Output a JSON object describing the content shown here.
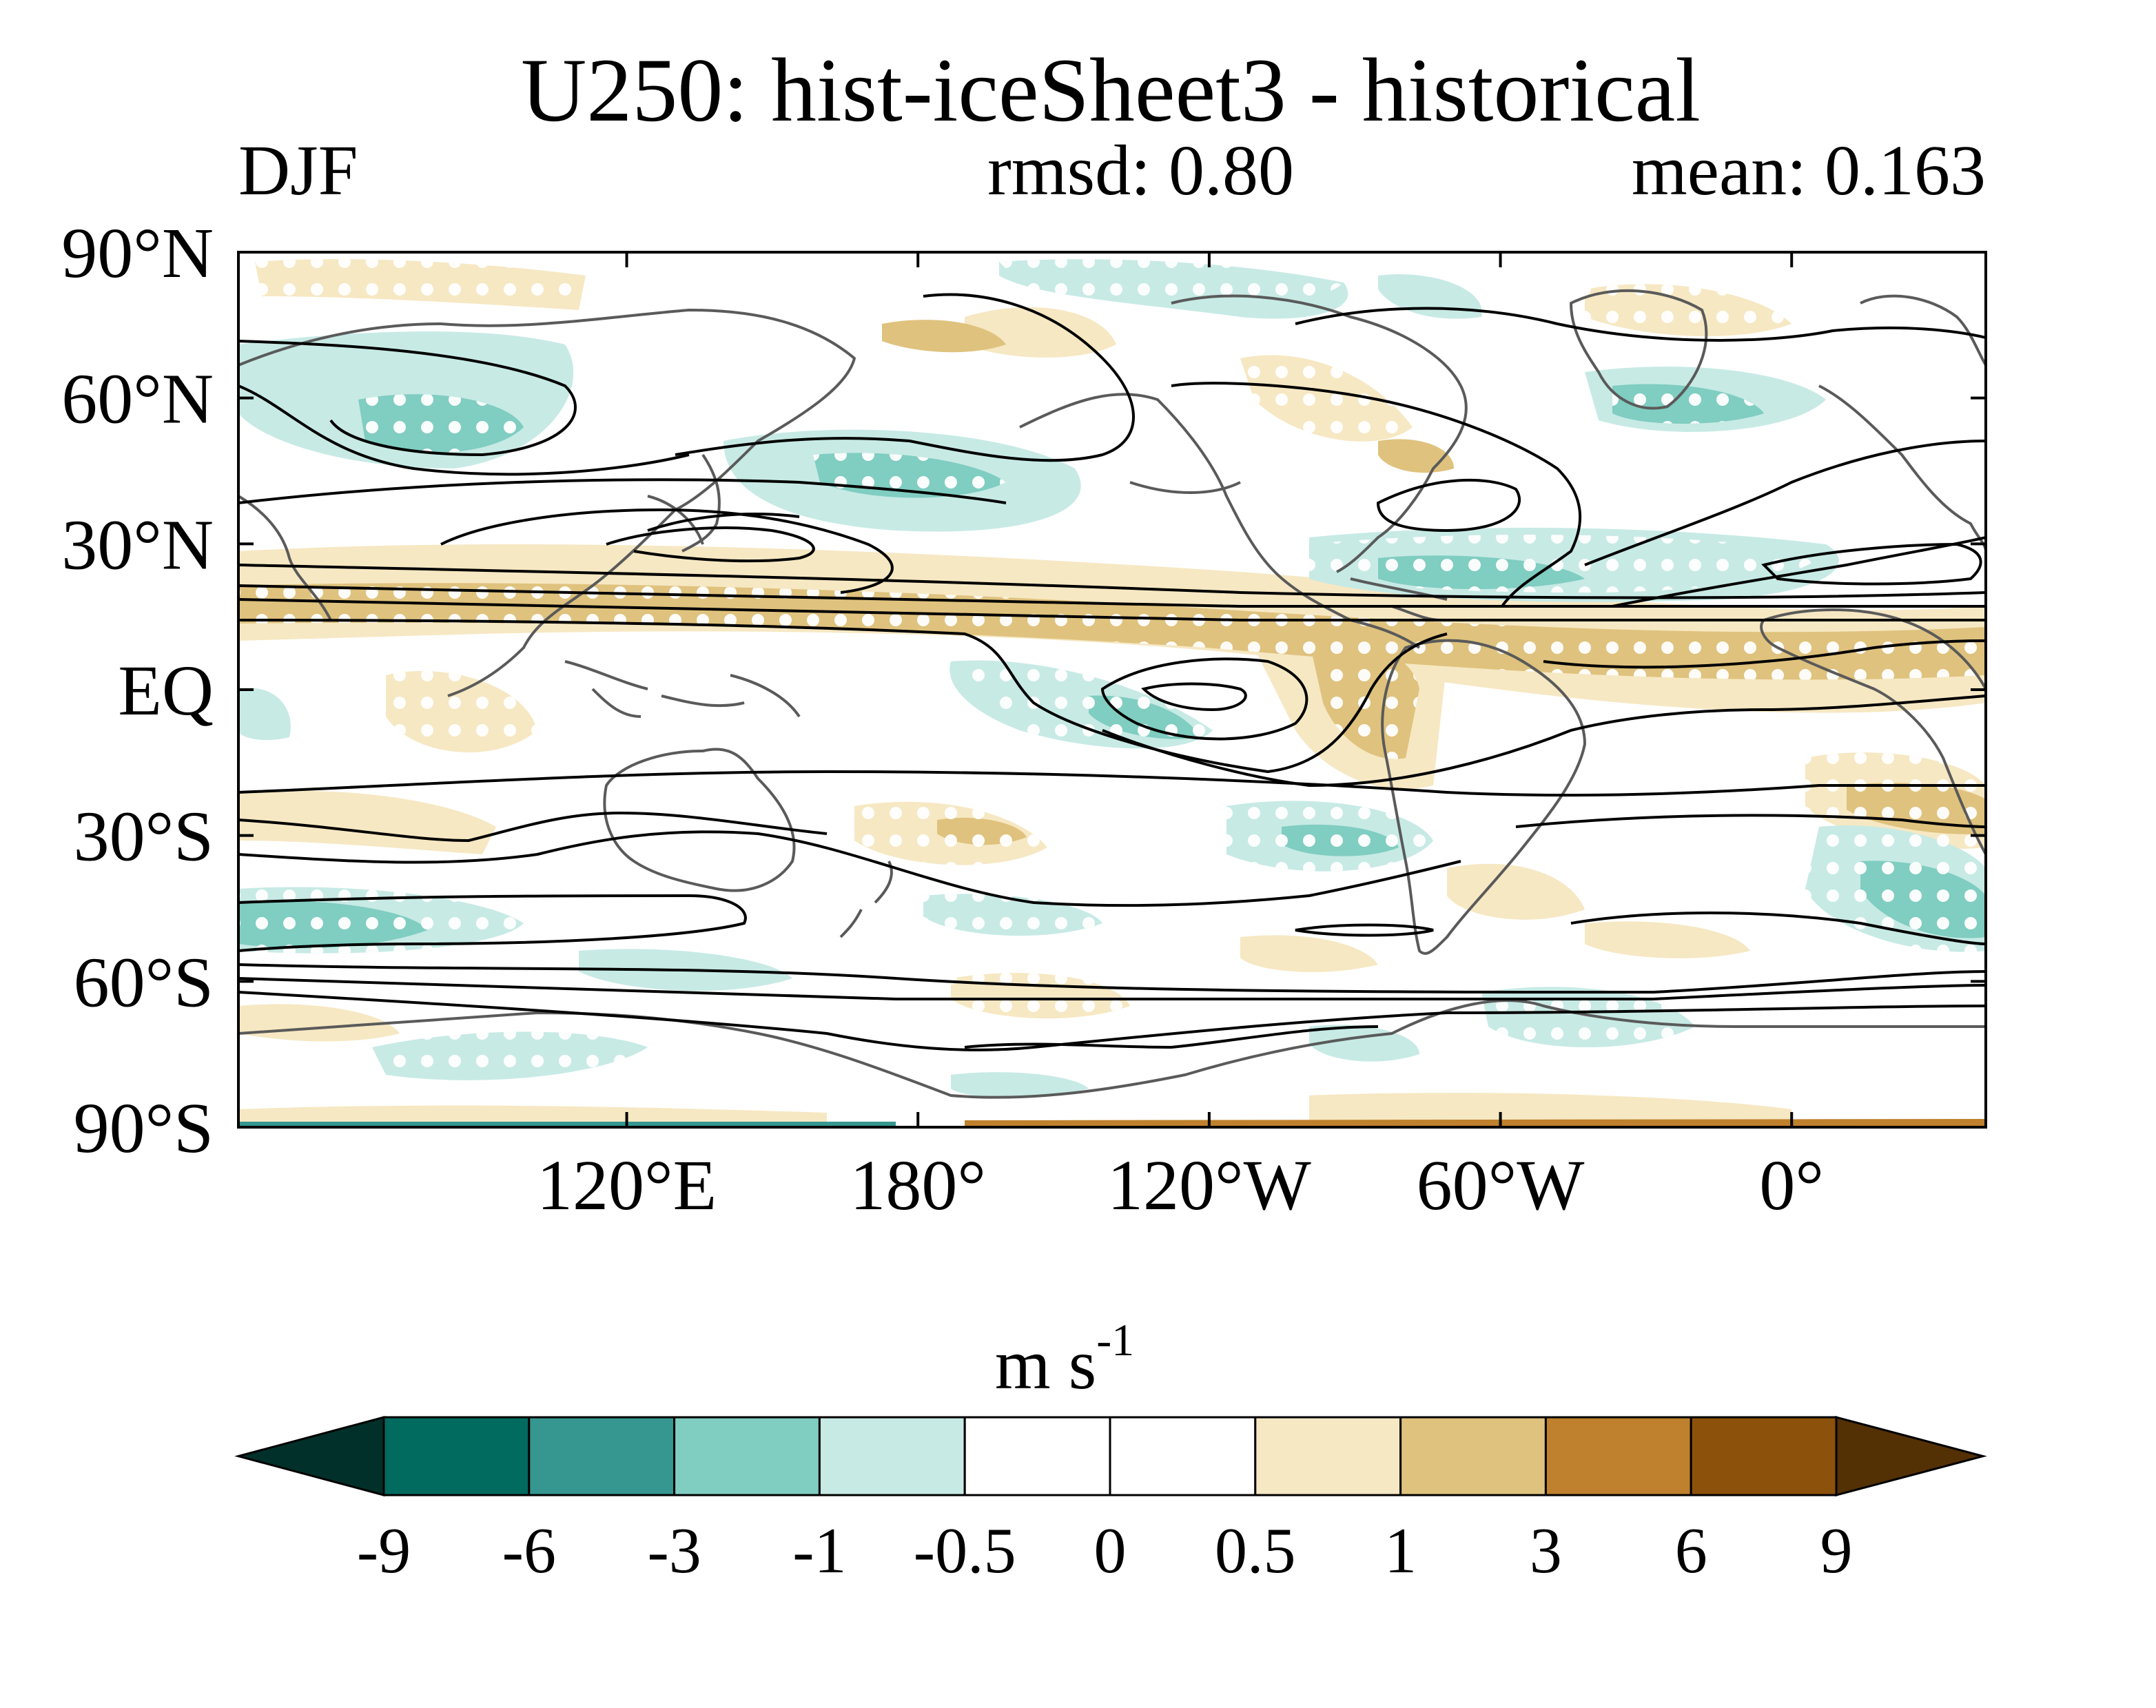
{
  "title": "U250: hist-iceSheet3 - historical",
  "season": "DJF",
  "rmsd": "rmsd: 0.80",
  "mean": "mean: 0.163",
  "map": {
    "lat_ticks": [
      "90°N",
      "60°N",
      "30°N",
      "EQ",
      "30°S",
      "60°S",
      "90°S"
    ],
    "lon_ticks": [
      "120°E",
      "180°",
      "120°W",
      "60°W",
      "0°"
    ],
    "lat_values": [
      90,
      60,
      30,
      0,
      -30,
      -60,
      -90
    ],
    "lon_values": [
      120,
      180,
      240,
      300,
      360
    ],
    "lon_range": [
      40,
      400
    ],
    "lat_range": [
      -90,
      90
    ]
  },
  "colorbar": {
    "unit_base": "m s",
    "unit_exp": "-1",
    "labels": [
      "-9",
      "-6",
      "-3",
      "-1",
      "-0.5",
      "0",
      "0.5",
      "1",
      "3",
      "6",
      "9"
    ],
    "colors": [
      "#01302a",
      "#016b5f",
      "#35978f",
      "#80cdc1",
      "#c7eae5",
      "#ffffff",
      "#ffffff",
      "#f6e8c3",
      "#dfc27d",
      "#bf812d",
      "#8c510a",
      "#543005"
    ]
  },
  "colors": {
    "coastline": "#5a5a5a",
    "contour": "#000000",
    "stipple": "#ffffff"
  }
}
